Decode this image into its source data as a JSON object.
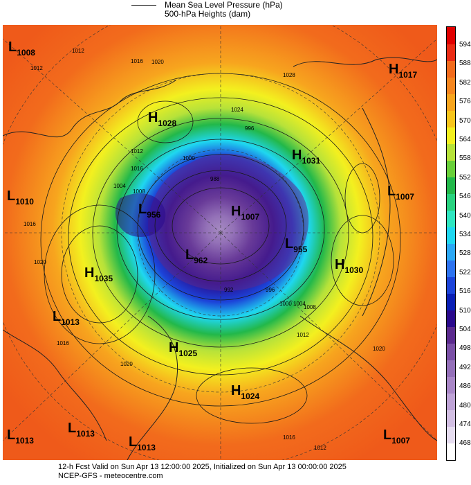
{
  "legend": {
    "mslp_label": "Mean Sea Level Pressure (hPa)",
    "heights_label": "500-hPa Heights (dam)"
  },
  "systems": [
    {
      "type": "L",
      "value": "1008",
      "lon_lat": "NW corner"
    },
    {
      "type": "H",
      "value": "1028"
    },
    {
      "type": "H",
      "value": "1017"
    },
    {
      "type": "H",
      "value": "1031"
    },
    {
      "type": "L",
      "value": "1010"
    },
    {
      "type": "L",
      "value": "956"
    },
    {
      "type": "H",
      "value": "1007"
    },
    {
      "type": "L",
      "value": "1007"
    },
    {
      "type": "L",
      "value": "955"
    },
    {
      "type": "H",
      "value": "1035"
    },
    {
      "type": "L",
      "value": "962"
    },
    {
      "type": "H",
      "value": "1030"
    },
    {
      "type": "L",
      "value": "1013"
    },
    {
      "type": "H",
      "value": "1025"
    },
    {
      "type": "H",
      "value": "1024"
    },
    {
      "type": "L",
      "value": "1013"
    },
    {
      "type": "L",
      "value": "1013"
    },
    {
      "type": "L",
      "value": "1013"
    },
    {
      "type": "L",
      "value": "1007"
    }
  ],
  "contour_labels": [
    "1012",
    "1016",
    "1020",
    "1024",
    "1028",
    "1012",
    "1016",
    "1008",
    "1000",
    "996",
    "1016",
    "1020",
    "1004",
    "988",
    "992",
    "996",
    "1000",
    "1004",
    "1008",
    "1012",
    "1016",
    "1020",
    "1016",
    "1012",
    "1012",
    "1020"
  ],
  "colorbar": {
    "ticks": [
      "594",
      "588",
      "582",
      "576",
      "570",
      "564",
      "558",
      "552",
      "546",
      "540",
      "534",
      "528",
      "522",
      "516",
      "510",
      "504",
      "498",
      "492",
      "486",
      "480",
      "474",
      "468"
    ],
    "colors": [
      "#ffffff",
      "#e6ddf0",
      "#d2bfe3",
      "#bea3d6",
      "#a987c7",
      "#9470b9",
      "#7a50a6",
      "#5b2a8e",
      "#2a0a8c",
      "#0a1fb5",
      "#1c44d9",
      "#2d73f0",
      "#2ba8f5",
      "#1fd7f0",
      "#2fe6c1",
      "#28d27f",
      "#22b84a",
      "#69d03a",
      "#b6e23a",
      "#f3f01f",
      "#f7c51c",
      "#f7a51e",
      "#f5861f",
      "#f26b1c",
      "#ea2b14",
      "#e00000"
    ]
  },
  "footer": {
    "line1": "12-h Fcst Valid on Sun Apr 13 12:00:00 2025, Initialized on Sun Apr 13 00:00:00 2025",
    "line2": "NCEP-GFS  -  meteocentre.com"
  }
}
